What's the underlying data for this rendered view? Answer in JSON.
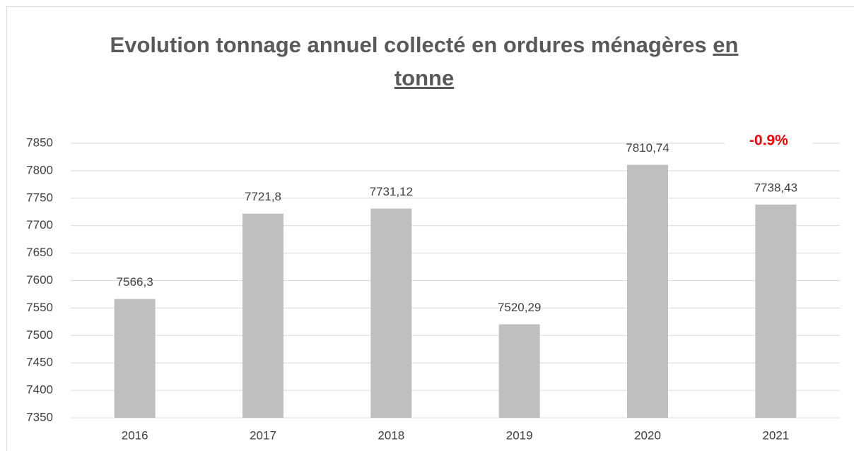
{
  "chart_data": {
    "type": "bar",
    "title": [
      "Evolution tonnage annuel collecté en ordures ménagères",
      "en tonne"
    ],
    "categories": [
      "2016",
      "2017",
      "2018",
      "2019",
      "2020",
      "2021"
    ],
    "values": [
      7566.3,
      7721.8,
      7731.12,
      7520.29,
      7810.74,
      7738.43
    ],
    "value_labels": [
      "7566,3",
      "7721,8",
      "7731,12",
      "7520,29",
      "7810,74",
      "7738,43"
    ],
    "color": "#bfbfbf",
    "ylim": [
      7350,
      7850
    ],
    "yticks": [
      7350,
      7400,
      7450,
      7500,
      7550,
      7600,
      7650,
      7700,
      7750,
      7800,
      7850
    ],
    "grid": true,
    "annotation": {
      "text": "-0.9%",
      "color": "#ff0000"
    }
  }
}
